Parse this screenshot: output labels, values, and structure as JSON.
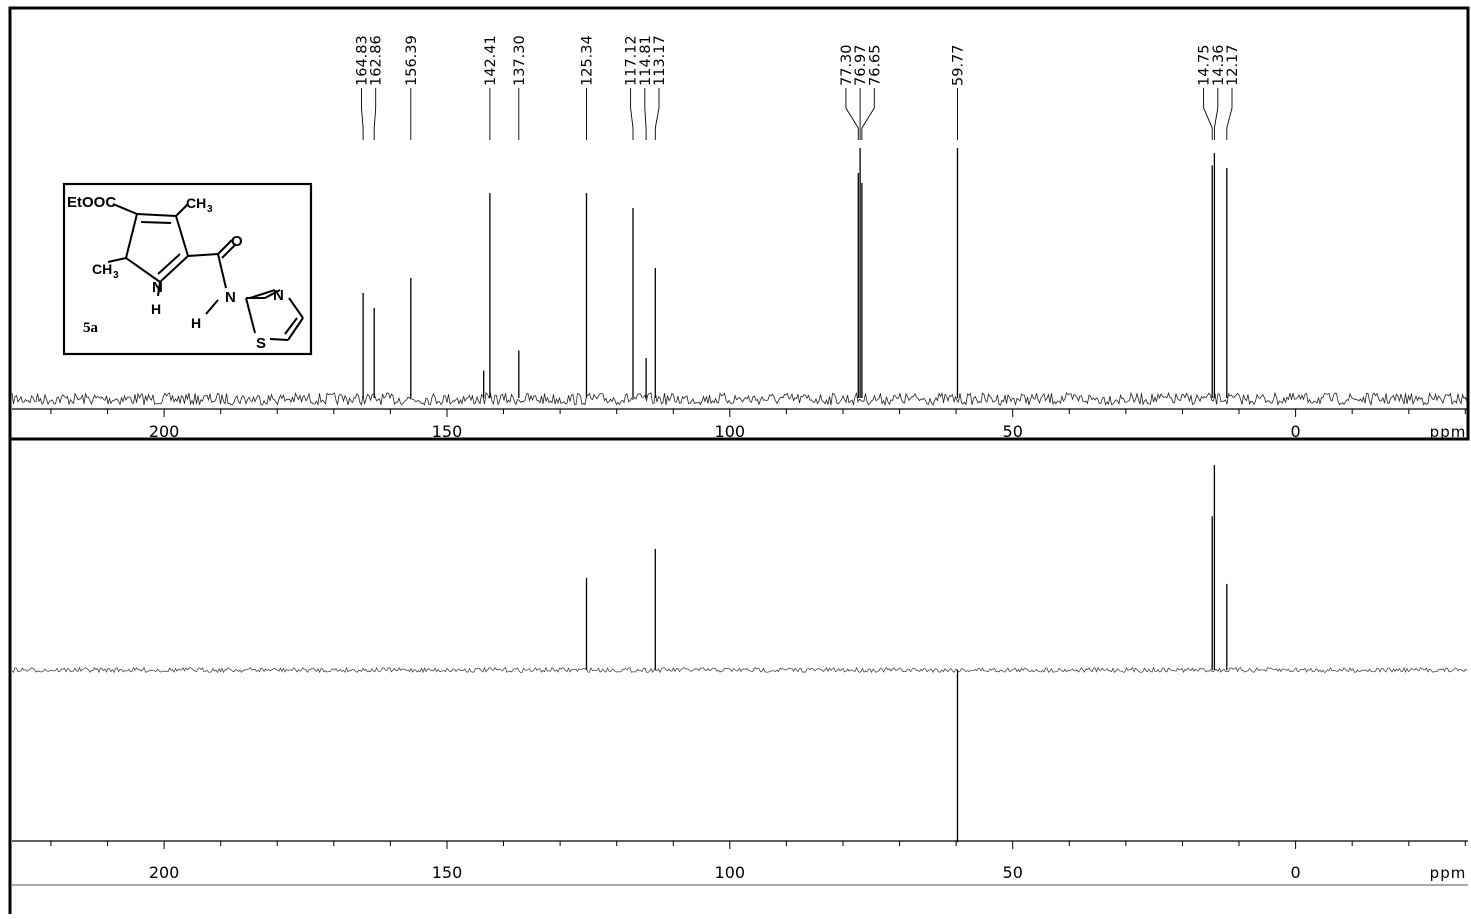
{
  "chart_data": [
    {
      "type": "line",
      "subtype": "13C NMR spectrum (broadband decoupled)",
      "title": "",
      "xlabel": "ppm",
      "ylabel": "",
      "xlim": [
        229,
        -31
      ],
      "x_reversed": true,
      "x_ticks": [
        200,
        150,
        100,
        50,
        0
      ],
      "grid": false,
      "peak_labels": [
        "164.83",
        "162.86",
        "156.39",
        "142.41",
        "137.30",
        "125.34",
        "117.12",
        "114.81",
        "113.17",
        "77.30",
        "76.97",
        "76.65",
        "59.77",
        "14.75",
        "14.36",
        "12.17"
      ],
      "peaks": [
        {
          "x": 164.83,
          "y": 0.42
        },
        {
          "x": 162.86,
          "y": 0.36
        },
        {
          "x": 156.39,
          "y": 0.48
        },
        {
          "x": 143.5,
          "y": 0.11
        },
        {
          "x": 142.41,
          "y": 0.82
        },
        {
          "x": 137.3,
          "y": 0.19
        },
        {
          "x": 125.34,
          "y": 0.82
        },
        {
          "x": 117.12,
          "y": 0.76
        },
        {
          "x": 114.81,
          "y": 0.16
        },
        {
          "x": 113.17,
          "y": 0.52
        },
        {
          "x": 77.3,
          "y": 0.9
        },
        {
          "x": 76.97,
          "y": 1.0
        },
        {
          "x": 76.65,
          "y": 0.86
        },
        {
          "x": 59.77,
          "y": 1.0
        },
        {
          "x": 14.75,
          "y": 0.93
        },
        {
          "x": 14.36,
          "y": 0.98
        },
        {
          "x": 12.17,
          "y": 0.92
        }
      ]
    },
    {
      "type": "line",
      "subtype": "13C DEPT-135 spectrum",
      "title": "",
      "xlabel": "ppm",
      "ylabel": "",
      "xlim": [
        229,
        -31
      ],
      "x_reversed": true,
      "x_ticks": [
        200,
        150,
        100,
        50,
        0
      ],
      "grid": false,
      "peaks": [
        {
          "x": 125.34,
          "y": 0.45
        },
        {
          "x": 113.17,
          "y": 0.59
        },
        {
          "x": 14.75,
          "y": 0.75
        },
        {
          "x": 14.36,
          "y": 1.0
        },
        {
          "x": 12.17,
          "y": 0.42
        },
        {
          "x": 59.77,
          "y": -0.84
        }
      ]
    }
  ],
  "structure": {
    "compound_label": "5a",
    "atoms": {
      "ester": "EtOOC",
      "methyl_top": "CH",
      "methyl_top_sub": "3",
      "methyl_left": "CH",
      "methyl_left_sub": "3",
      "carbonyl_o": "O",
      "ring_n": "N",
      "ring_nh": "H",
      "amide_n": "N",
      "amide_h": "H",
      "thiazole_n": "N",
      "thiazole_s": "S"
    }
  }
}
